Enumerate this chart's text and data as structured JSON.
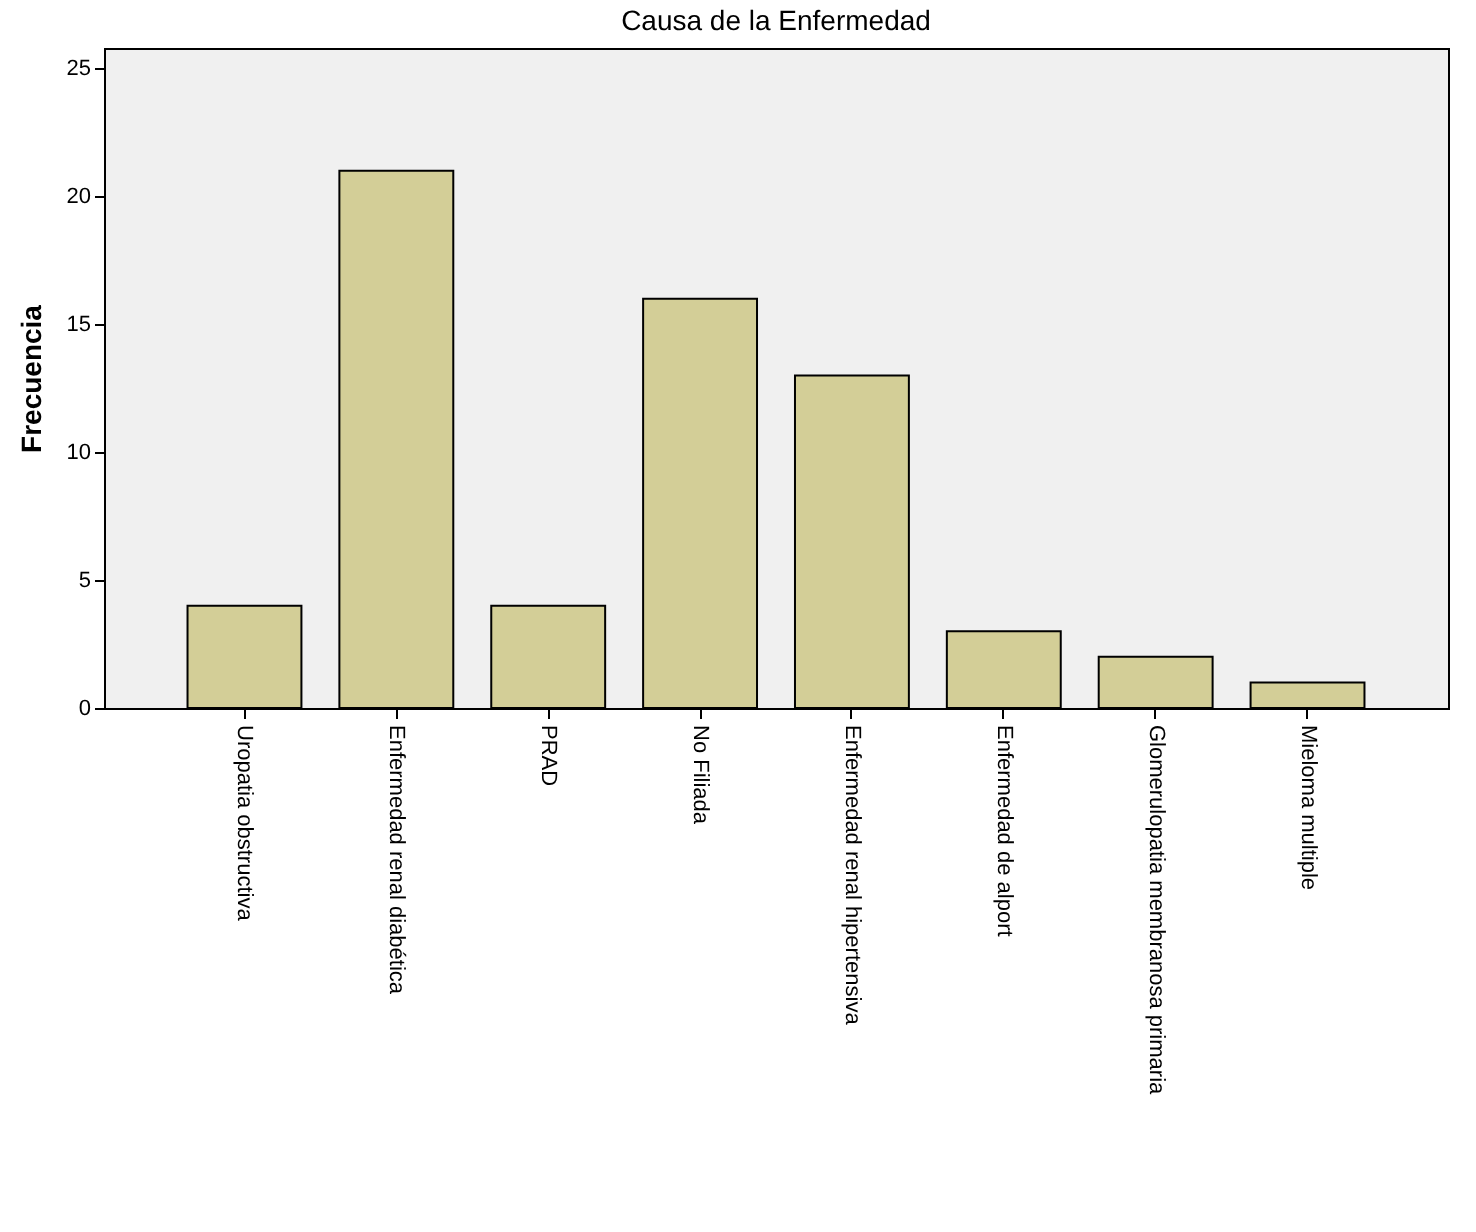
{
  "chart_data": {
    "type": "bar",
    "title": "Causa de la Enfermedad",
    "ylabel": "Frecuencia",
    "categories": [
      "Uropatia obstructiva",
      "Enfermedad renal diabética",
      "PRAD",
      "No Filiada",
      "Enfermedad renal hipertensiva",
      "Enfermedad de alport",
      "Glomerulopatia membranosa primaria",
      "Mieloma multiple"
    ],
    "values": [
      4,
      21,
      4,
      16,
      13,
      3,
      2,
      1
    ],
    "color": "#d3ce97",
    "ylim": [
      0,
      25.8
    ],
    "yticks": [
      0,
      5,
      10,
      15,
      20,
      25
    ],
    "grid": false
  }
}
